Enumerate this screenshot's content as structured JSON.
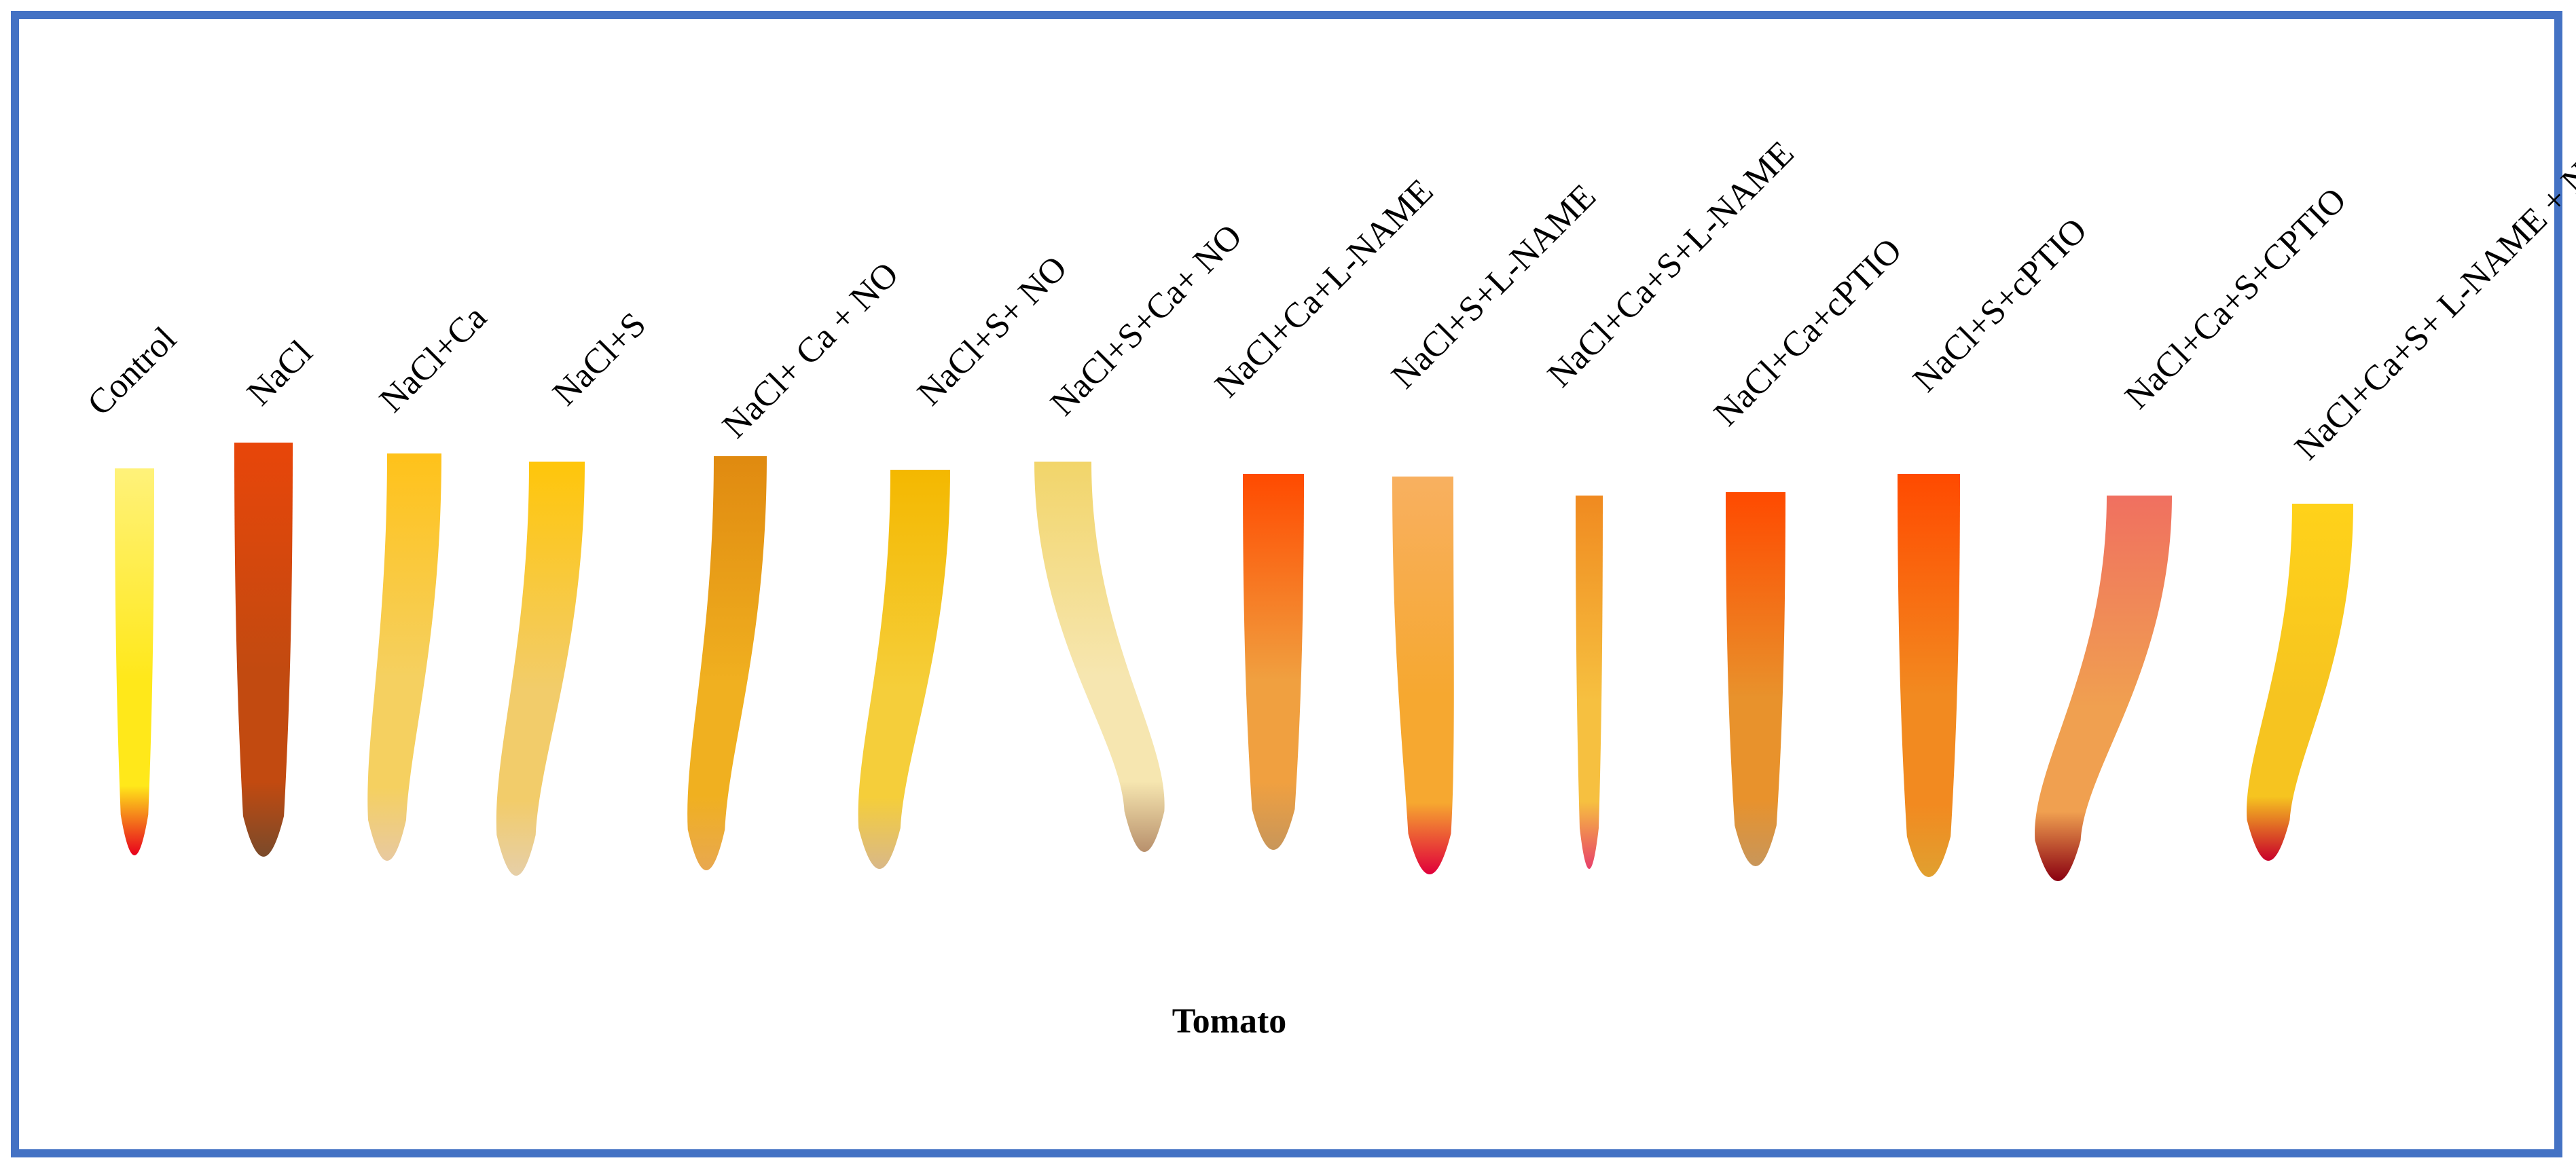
{
  "figure": {
    "crop_label": "Tomato",
    "frame_color": "#4472C4",
    "treatments": [
      {
        "label": "Control",
        "stain": "yellow-root-red-tip",
        "colors": [
          "#FFF27A",
          "#FFE81A",
          "#E8001C"
        ]
      },
      {
        "label": "NaCl",
        "stain": "dark-orange-brown",
        "colors": [
          "#E8460A",
          "#C24A10",
          "#7A4A2A"
        ]
      },
      {
        "label": "NaCl+Ca",
        "stain": "yellow-to-pale",
        "colors": [
          "#FFC21A",
          "#F5D060",
          "#E8C9A0"
        ]
      },
      {
        "label": "NaCl+S",
        "stain": "yellow-to-pale",
        "colors": [
          "#FFC60A",
          "#F2CC6A",
          "#E6CFA8"
        ]
      },
      {
        "label": "NaCl+ Ca + NO",
        "stain": "orange-yellow",
        "colors": [
          "#E08A10",
          "#F0B020",
          "#E8A850"
        ]
      },
      {
        "label": "NaCl+S+ NO",
        "stain": "yellow-to-tan",
        "colors": [
          "#F4B800",
          "#F5CE3A",
          "#D9B888"
        ]
      },
      {
        "label": "NaCl+S+Ca+ NO",
        "stain": "pale-to-brown",
        "colors": [
          "#F2D56A",
          "#F6E6B0",
          "#B8906C"
        ]
      },
      {
        "label": "NaCl+Ca+L-NAME",
        "stain": "orange-to-tan",
        "colors": [
          "#FF4A00",
          "#F0A040",
          "#C8965A"
        ]
      },
      {
        "label": "NaCl+S+L-NAME",
        "stain": "orange-red-tip",
        "colors": [
          "#F8B060",
          "#F6A830",
          "#E0003A"
        ]
      },
      {
        "label": "NaCl+Ca+S+L-NAME",
        "stain": "orange-pink-tip",
        "colors": [
          "#F08A20",
          "#F6C040",
          "#E8406A"
        ]
      },
      {
        "label": "NaCl+Ca+cPTIO",
        "stain": "orange-to-tan",
        "colors": [
          "#FF4A00",
          "#E8922C",
          "#C8965A"
        ]
      },
      {
        "label": "NaCl+S+cPTIO",
        "stain": "orange",
        "colors": [
          "#FF4A00",
          "#F28A20",
          "#E0A030"
        ]
      },
      {
        "label": "NaCl+Ca+S+CPTIO",
        "stain": "pink-orange-dark-red-tip",
        "colors": [
          "#F07060",
          "#F0A050",
          "#8A0010"
        ]
      },
      {
        "label": "NaCl+Ca+S+ L-NAME + NO",
        "stain": "yellow-red-tip",
        "colors": [
          "#FFD21A",
          "#F6C420",
          "#C8002A"
        ]
      }
    ]
  }
}
